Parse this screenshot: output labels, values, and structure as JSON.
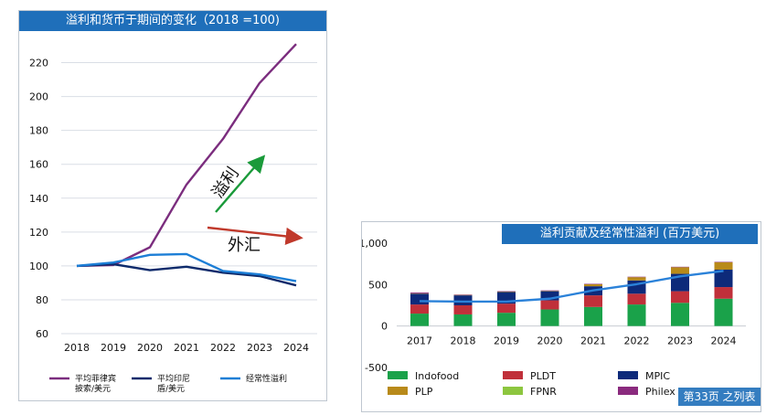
{
  "chart1": {
    "title": "溢利和货币于期间的变化（2018 =100)",
    "annotations": {
      "profit_label": "溢利",
      "fx_label": "外汇"
    },
    "colors": {
      "header": "#1f6fba",
      "grid": "#d9dee5",
      "green_arrow": "#1a9a3a",
      "red_arrow": "#c0392b"
    },
    "chart_data": {
      "type": "line",
      "x": [
        "2018",
        "2019",
        "2020",
        "2021",
        "2022",
        "2023",
        "2024"
      ],
      "ylim": [
        60,
        230
      ],
      "yticks": [
        60,
        80,
        100,
        120,
        140,
        160,
        180,
        200,
        220
      ],
      "grid": true,
      "legend_position": "bottom",
      "series": [
        {
          "name": "平均菲律宾披索/美元",
          "name_lines": [
            "平均菲律宾",
            "披索/美元"
          ],
          "color": "#7b2d7e",
          "values": [
            100,
            100.5,
            111,
            148,
            175,
            208,
            231
          ]
        },
        {
          "name": "平均印尼盾/美元",
          "name_lines": [
            "平均印尼",
            "盾/美元"
          ],
          "color": "#0d2a6b",
          "values": [
            100,
            101,
            97.5,
            99.5,
            96,
            94,
            88.5
          ]
        },
        {
          "name": "经常性溢利",
          "name_lines": [
            "经常性溢利"
          ],
          "color": "#1c7ed6",
          "values": [
            100,
            102,
            106.5,
            107,
            97,
            95,
            91
          ]
        }
      ]
    }
  },
  "chart2": {
    "title": "溢利贡献及经常性溢利 (百万美元)",
    "watermark": "第33页 之列表",
    "chart_data": {
      "type": "bar",
      "stacked": true,
      "categories": [
        "2017",
        "2018",
        "2019",
        "2020",
        "2021",
        "2022",
        "2023",
        "2024"
      ],
      "ylim": [
        -500,
        1000
      ],
      "yticks": [
        -500,
        0,
        500,
        1000
      ],
      "ytick_labels": [
        "-500",
        "0",
        "500",
        "1,000"
      ],
      "grid": false,
      "legend_position": "bottom",
      "series": [
        {
          "name": "Indofood",
          "color": "#1aa24a",
          "values": [
            150,
            140,
            160,
            200,
            230,
            260,
            280,
            330
          ]
        },
        {
          "name": "PLDT",
          "color": "#c0303a",
          "values": [
            110,
            110,
            110,
            110,
            140,
            130,
            140,
            140
          ]
        },
        {
          "name": "MPIC",
          "color": "#0d2a7a",
          "values": [
            130,
            120,
            140,
            110,
            110,
            160,
            210,
            210
          ]
        },
        {
          "name": "PLP",
          "color": "#b88a1a",
          "values": [
            5,
            5,
            5,
            5,
            25,
            40,
            80,
            90
          ]
        },
        {
          "name": "FPNR",
          "color": "#8dc63f",
          "values": [
            0,
            0,
            0,
            0,
            0,
            0,
            0,
            0
          ]
        },
        {
          "name": "Philex",
          "color": "#8a2a7e",
          "values": [
            10,
            5,
            5,
            5,
            5,
            5,
            5,
            5
          ]
        }
      ],
      "line": {
        "name": "经常性溢利",
        "color": "#2b82d9",
        "values": [
          300,
          295,
          295,
          330,
          430,
          505,
          600,
          665
        ]
      }
    }
  }
}
